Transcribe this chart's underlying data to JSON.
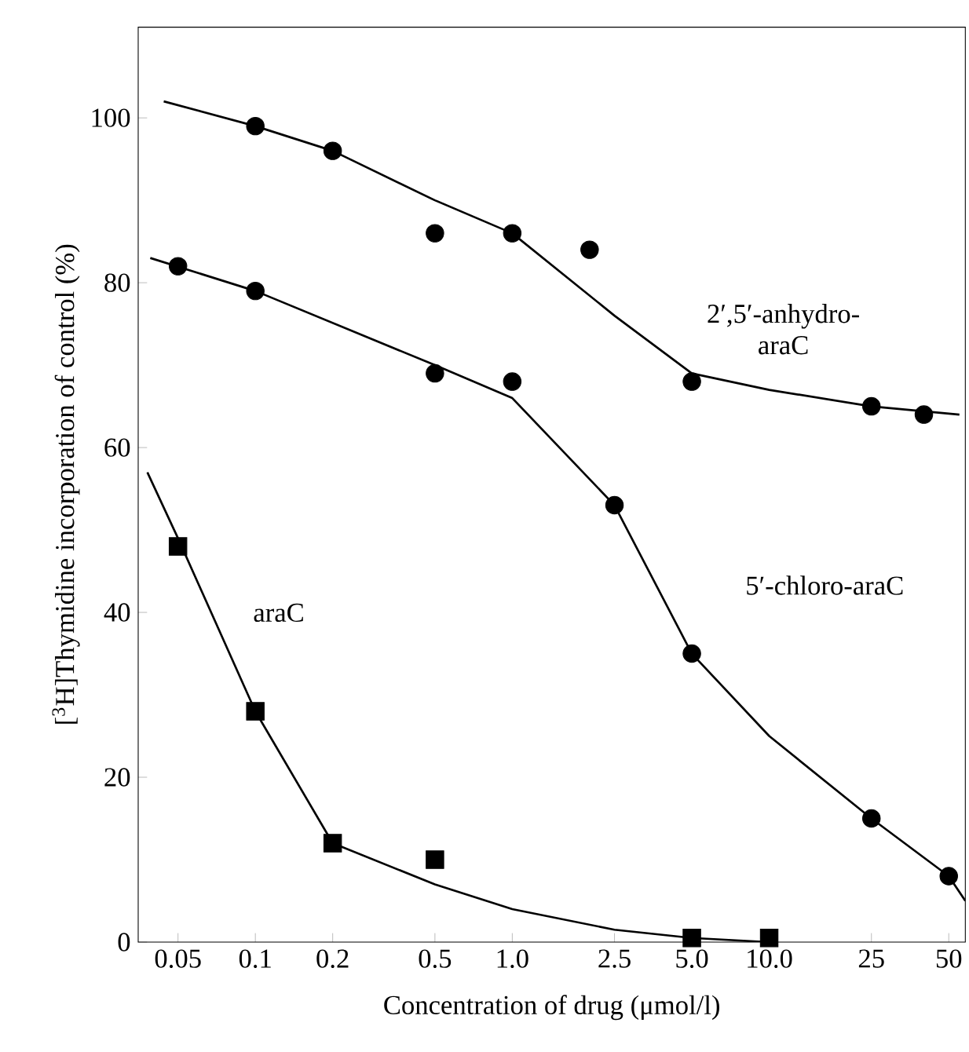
{
  "chart_data": {
    "type": "scatter",
    "xlabel": "Concentration of drug (μmol/l)",
    "ylabel": "[$^{3}$H]Thymidine incorporation of control (%)",
    "log": "x",
    "grid": false,
    "xlim": [
      0.035,
      58
    ],
    "ylim": [
      0,
      111
    ],
    "xticks": [
      0.05,
      0.1,
      0.2,
      0.5,
      {
        "value": 1,
        "label": "1.0"
      },
      2.5,
      {
        "value": 5,
        "label": "5.0"
      },
      {
        "value": 10,
        "label": "10.0"
      },
      25,
      50
    ],
    "yticks": [
      0,
      20,
      40,
      60,
      80,
      100
    ],
    "series": [
      {
        "marker": "circle",
        "color": "#000000",
        "x": [
          0.1,
          0.2,
          0.5,
          1.0,
          2.0,
          5.0,
          25,
          40
        ],
        "values": [
          99,
          96,
          86,
          86,
          84,
          68,
          65,
          64
        ]
      },
      {
        "marker": "circle",
        "color": "#000000",
        "x": [
          0.05,
          0.1,
          0.5,
          1.0,
          2.5,
          5.0,
          25,
          50
        ],
        "values": [
          82,
          79,
          69,
          68,
          53,
          35,
          15,
          8
        ]
      },
      {
        "marker": "square",
        "color": "#000000",
        "x": [
          0.05,
          0.1,
          0.2,
          0.5,
          5.0,
          10.0
        ],
        "values": [
          48,
          28,
          12,
          10,
          0.5,
          0.5
        ]
      },
      {
        "type": "line",
        "marker": "none",
        "color": "#000000",
        "x": [
          0.044,
          0.1,
          0.2,
          0.5,
          1.0,
          2.5,
          5.0,
          10,
          25,
          55
        ],
        "values": [
          102,
          99,
          96,
          90,
          86,
          76,
          69,
          67,
          65,
          64
        ]
      },
      {
        "type": "line",
        "marker": "none",
        "color": "#000000",
        "x": [
          0.039,
          0.1,
          0.5,
          1.0,
          2.5,
          5.0,
          10,
          25,
          50,
          58
        ],
        "values": [
          83,
          79,
          70,
          66,
          53,
          35,
          25,
          15,
          8,
          5
        ]
      },
      {
        "type": "line",
        "marker": "none",
        "color": "#000000",
        "x": [
          0.038,
          0.05,
          0.1,
          0.2,
          0.5,
          1.0,
          2.5,
          5.0,
          10
        ],
        "values": [
          57,
          49,
          28,
          12,
          7,
          4,
          1.5,
          0.5,
          0
        ]
      }
    ],
    "annotations": [
      "2′,5′-anhydro-araC",
      "5′-chloro-araC",
      "araC"
    ]
  }
}
